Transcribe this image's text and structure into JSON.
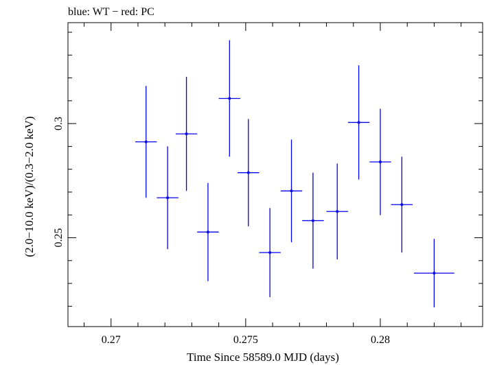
{
  "chart_data": {
    "type": "scatter",
    "title": "blue: WT − red: PC",
    "xlabel": "Time Since 58589.0 MJD (days)",
    "ylabel": "(2.0−10.0 keV)/(0.3−2.0 keV)",
    "xlim": [
      0.2684,
      0.2838
    ],
    "ylim": [
      0.2111,
      0.3442
    ],
    "x_ticks": [
      {
        "value": 0.27,
        "label": "0.27"
      },
      {
        "value": 0.275,
        "label": "0.275"
      },
      {
        "value": 0.28,
        "label": "0.28"
      }
    ],
    "y_ticks": [
      {
        "value": 0.25,
        "label": "0.25"
      },
      {
        "value": 0.3,
        "label": "0.3"
      }
    ],
    "grid": false,
    "series": [
      {
        "name": "WT",
        "color": "#0000ee",
        "points": [
          {
            "x": 0.2713,
            "y": 0.292,
            "xerr": 0.0004,
            "yerr": 0.0245
          },
          {
            "x": 0.2721,
            "y": 0.2675,
            "xerr": 0.0004,
            "yerr": 0.0225
          },
          {
            "x": 0.2728,
            "y": 0.2955,
            "xerr": 0.0004,
            "yerr": 0.025
          },
          {
            "x": 0.2736,
            "y": 0.2525,
            "xerr": 0.0004,
            "yerr": 0.0215
          },
          {
            "x": 0.2744,
            "y": 0.311,
            "xerr": 0.0004,
            "yerr": 0.0255
          },
          {
            "x": 0.2751,
            "y": 0.2785,
            "xerr": 0.0004,
            "yerr": 0.0235
          },
          {
            "x": 0.2759,
            "y": 0.2435,
            "xerr": 0.0004,
            "yerr": 0.0195
          },
          {
            "x": 0.2767,
            "y": 0.2705,
            "xerr": 0.0004,
            "yerr": 0.0225
          },
          {
            "x": 0.2775,
            "y": 0.2575,
            "xerr": 0.0004,
            "yerr": 0.021
          },
          {
            "x": 0.2784,
            "y": 0.2615,
            "xerr": 0.0004,
            "yerr": 0.021
          },
          {
            "x": 0.2792,
            "y": 0.3005,
            "xerr": 0.0004,
            "yerr": 0.025
          },
          {
            "x": 0.28,
            "y": 0.2832,
            "xerr": 0.0004,
            "yerr": 0.0233
          },
          {
            "x": 0.2808,
            "y": 0.2645,
            "xerr": 0.0004,
            "yerr": 0.021
          },
          {
            "x": 0.282,
            "y": 0.2345,
            "xerr": 0.00075,
            "yerr": 0.015
          }
        ]
      }
    ]
  }
}
